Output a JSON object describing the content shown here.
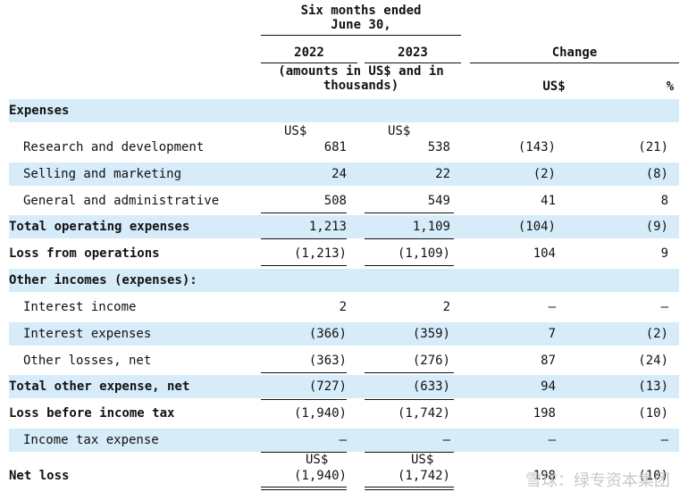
{
  "header": {
    "period_line1": "Six months ended",
    "period_line2": "June 30,",
    "year_2022": "2022",
    "year_2023": "2023",
    "change": "Change",
    "amounts_line1": "(amounts in US$ and in",
    "amounts_line2": "thousands)",
    "change_usd": "US$",
    "change_pct": "%"
  },
  "currency_symbol": "US$",
  "rows": [
    {
      "label": "Expenses",
      "v2022": "",
      "v2023": "",
      "chg": "",
      "pct": ""
    },
    {
      "label": "Research and development",
      "v2022": "681",
      "v2023": "538",
      "chg": "(143)",
      "pct": "(21)"
    },
    {
      "label": "Selling and marketing",
      "v2022": "24",
      "v2023": "22",
      "chg": "(2)",
      "pct": "(8)"
    },
    {
      "label": "General and administrative",
      "v2022": "508",
      "v2023": "549",
      "chg": "41",
      "pct": "8"
    },
    {
      "label": "Total operating expenses",
      "v2022": "1,213",
      "v2023": "1,109",
      "chg": "(104)",
      "pct": "(9)"
    },
    {
      "label": "Loss from operations",
      "v2022": "(1,213)",
      "v2023": "(1,109)",
      "chg": "104",
      "pct": "9"
    },
    {
      "label": "Other incomes (expenses):",
      "v2022": "",
      "v2023": "",
      "chg": "",
      "pct": ""
    },
    {
      "label": "Interest income",
      "v2022": "2",
      "v2023": "2",
      "chg": "—",
      "pct": "—"
    },
    {
      "label": "Interest expenses",
      "v2022": "(366)",
      "v2023": "(359)",
      "chg": "7",
      "pct": "(2)"
    },
    {
      "label": "Other losses, net",
      "v2022": "(363)",
      "v2023": "(276)",
      "chg": "87",
      "pct": "(24)"
    },
    {
      "label": "Total other expense, net",
      "v2022": "(727)",
      "v2023": "(633)",
      "chg": "94",
      "pct": "(13)"
    },
    {
      "label": "Loss before income tax",
      "v2022": "(1,940)",
      "v2023": "(1,742)",
      "chg": "198",
      "pct": "(10)"
    },
    {
      "label": "Income tax expense",
      "v2022": "—",
      "v2023": "—",
      "chg": "—",
      "pct": "—"
    },
    {
      "label": "Net loss",
      "v2022": "(1,940)",
      "v2023": "(1,742)",
      "chg": "198",
      "pct": "(10)"
    }
  ],
  "watermark": "雪球：绿专资本集团"
}
